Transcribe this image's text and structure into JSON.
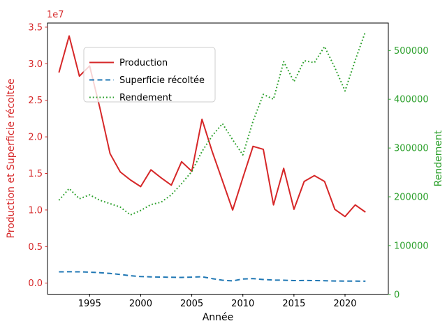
{
  "figure": {
    "xlabel": "Année",
    "ylabel_left": "Production et Superficie récoltée",
    "ylabel_right": "Rendement",
    "offset_text": "1e7",
    "colors": {
      "production": "#d62728",
      "superficie": "#1f77b4",
      "rendement": "#2ca02c",
      "axis": "#000000",
      "legend_border": "#cccccc",
      "background": "#ffffff"
    },
    "legend": {
      "items": [
        {
          "label": "Production",
          "style": "solid",
          "color": "#d62728"
        },
        {
          "label": "Superficie récoltée",
          "style": "dashed",
          "color": "#1f77b4"
        },
        {
          "label": "Rendement",
          "style": "dotted",
          "color": "#2ca02c"
        }
      ]
    }
  },
  "chart_data": {
    "type": "line",
    "title": "",
    "xlabel": "Année",
    "ylabel_left": "Production et Superficie récoltée",
    "ylabel_right": "Rendement",
    "x": [
      1992,
      1993,
      1994,
      1995,
      1996,
      1997,
      1998,
      1999,
      2000,
      2001,
      2002,
      2003,
      2004,
      2005,
      2006,
      2007,
      2008,
      2009,
      2010,
      2011,
      2012,
      2013,
      2014,
      2015,
      2016,
      2017,
      2018,
      2019,
      2020,
      2021,
      2022
    ],
    "series": [
      {
        "name": "Production",
        "axis": "left",
        "style": "solid",
        "color": "#d62728",
        "values": [
          28800000,
          33800000,
          28300000,
          29700000,
          24000000,
          17700000,
          15200000,
          14100000,
          13200000,
          15500000,
          14400000,
          13400000,
          16600000,
          15300000,
          22400000,
          18000000,
          14000000,
          10000000,
          14400000,
          18700000,
          18300000,
          10700000,
          15700000,
          10100000,
          13900000,
          14700000,
          13900000,
          10100000,
          9100000,
          10700000,
          9700000
        ]
      },
      {
        "name": "Superficie récoltée",
        "axis": "left",
        "style": "dashed",
        "color": "#1f77b4",
        "values": [
          1550000,
          1560000,
          1550000,
          1500000,
          1430000,
          1330000,
          1180000,
          1020000,
          900000,
          860000,
          830000,
          800000,
          780000,
          820000,
          880000,
          620000,
          400000,
          310000,
          570000,
          620000,
          500000,
          420000,
          400000,
          350000,
          360000,
          350000,
          330000,
          300000,
          280000,
          280000,
          270000
        ]
      },
      {
        "name": "Rendement",
        "axis": "right",
        "style": "dotted",
        "color": "#2ca02c",
        "values": [
          193000,
          217000,
          196000,
          204000,
          193000,
          186000,
          179000,
          163000,
          172000,
          184000,
          189000,
          204000,
          227000,
          252000,
          293000,
          325000,
          350000,
          317000,
          286000,
          355000,
          410000,
          400000,
          477000,
          436000,
          479000,
          475000,
          508000,
          465000,
          417000,
          480000,
          539000
        ]
      }
    ],
    "left_axis": {
      "tick_labels": [
        "0.0",
        "0.5",
        "1.0",
        "1.5",
        "2.0",
        "2.5",
        "3.0",
        "3.5"
      ],
      "tick_values": [
        0,
        5000000,
        10000000,
        15000000,
        20000000,
        25000000,
        30000000,
        35000000
      ],
      "offset_text": "1e7",
      "range": [
        -1500000,
        35500000
      ]
    },
    "right_axis": {
      "tick_labels": [
        "0",
        "100000",
        "200000",
        "300000",
        "400000",
        "500000"
      ],
      "tick_values": [
        0,
        100000,
        200000,
        300000,
        400000,
        500000
      ],
      "range": [
        0,
        556000
      ]
    },
    "x_axis": {
      "tick_labels": [
        "1995",
        "2000",
        "2005",
        "2010",
        "2015",
        "2020"
      ],
      "tick_values": [
        1995,
        2000,
        2005,
        2010,
        2015,
        2020
      ],
      "range": [
        1990.9,
        2024.2
      ]
    },
    "legend_position": "upper left",
    "grid": false
  }
}
